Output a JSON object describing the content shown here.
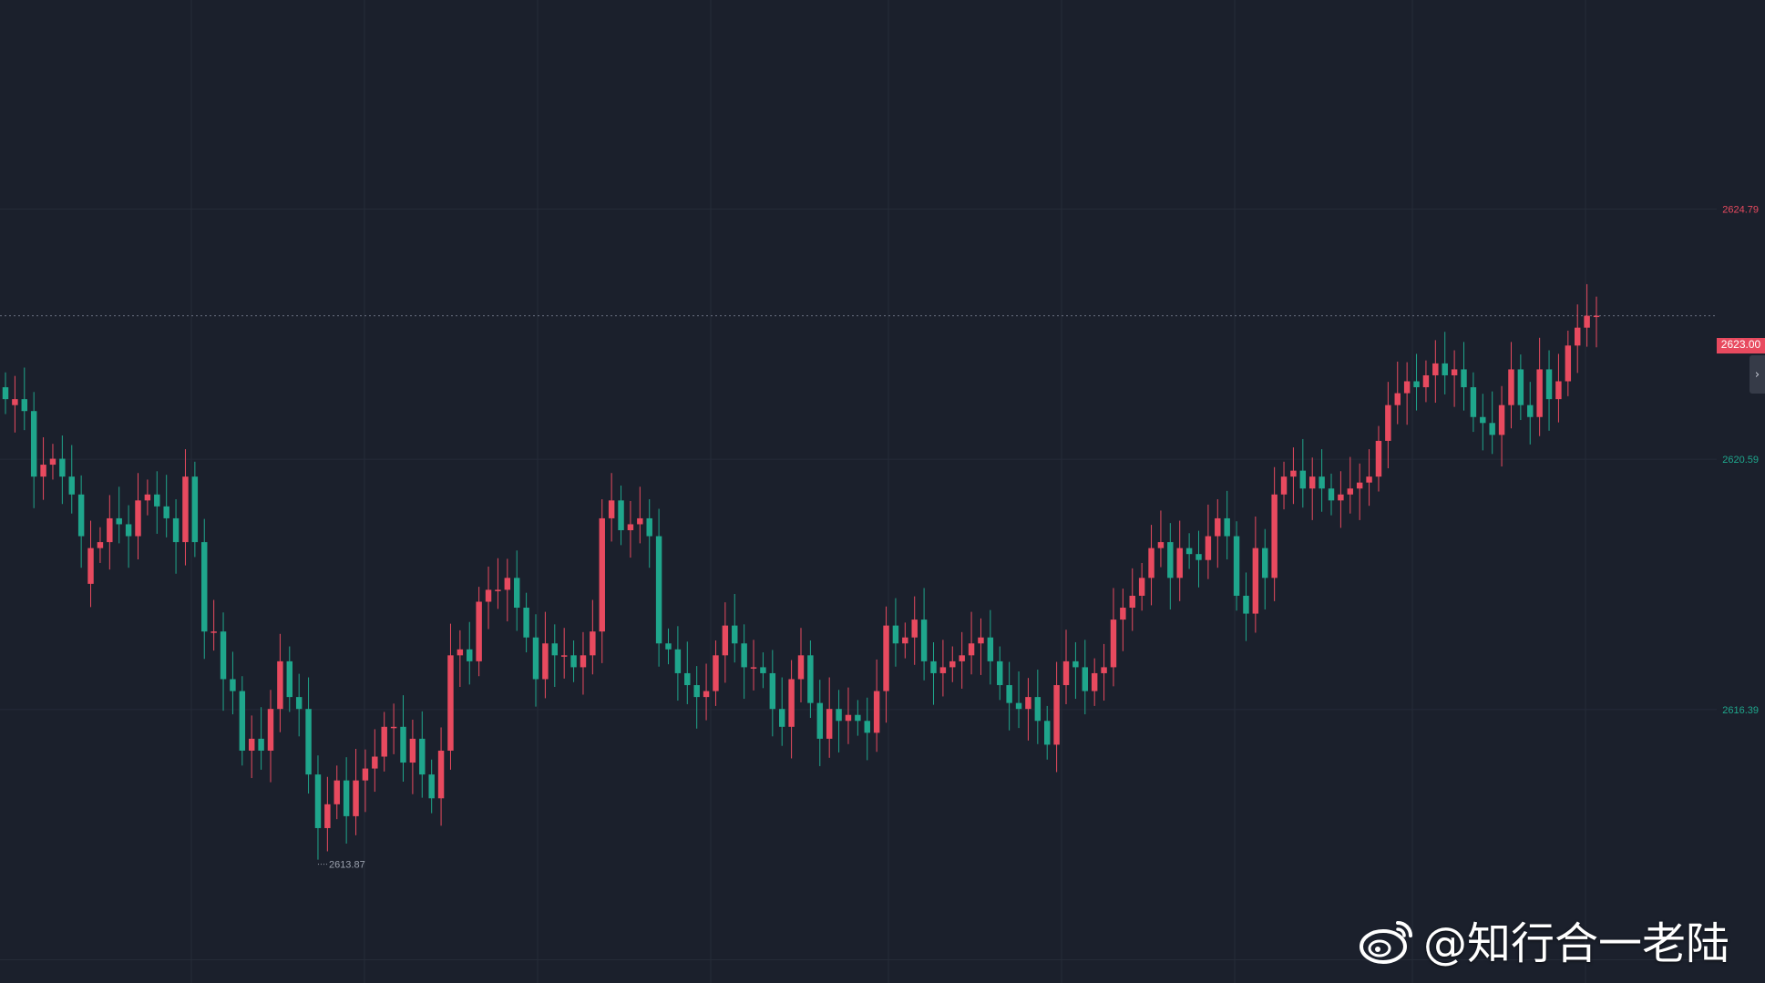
{
  "chart_data": {
    "type": "candlestick",
    "title": "",
    "xlabel": "",
    "ylabel": "",
    "ylim": [
      2611.8,
      2628.3
    ],
    "y_ticks": [
      "2624.79",
      "2620.59",
      "2616.39"
    ],
    "current_price": "2623.00",
    "low_annotation": {
      "label": "2613.87",
      "bar_index": 33
    },
    "grid": true,
    "colors": {
      "up": "#e84a5f",
      "down": "#1fa68c",
      "background": "#1b202c",
      "grid": "#252b38",
      "last_price_line": "#6b7080"
    },
    "closes": [
      2621.6,
      2621.6,
      2621.4,
      2620.3,
      2620.5,
      2620.6,
      2620.3,
      2620.0,
      2619.3,
      2619.1,
      2619.2,
      2619.6,
      2619.5,
      2619.3,
      2619.9,
      2620.0,
      2619.8,
      2619.6,
      2619.2,
      2620.3,
      2619.2,
      2617.7,
      2617.7,
      2616.9,
      2616.7,
      2615.7,
      2615.9,
      2615.7,
      2616.4,
      2617.2,
      2616.6,
      2616.4,
      2615.3,
      2614.4,
      2614.8,
      2615.2,
      2614.6,
      2615.2,
      2615.4,
      2615.6,
      2616.1,
      2616.1,
      2615.5,
      2615.9,
      2615.3,
      2614.9,
      2615.7,
      2617.3,
      2617.4,
      2617.2,
      2618.2,
      2618.4,
      2618.4,
      2618.6,
      2618.1,
      2617.6,
      2616.9,
      2617.5,
      2617.3,
      2617.3,
      2617.1,
      2617.3,
      2617.7,
      2619.6,
      2619.9,
      2619.4,
      2619.5,
      2619.6,
      2619.3,
      2617.5,
      2617.4,
      2617.0,
      2616.8,
      2616.6,
      2616.7,
      2617.3,
      2617.8,
      2617.5,
      2617.1,
      2617.1,
      2617.0,
      2616.4,
      2616.1,
      2616.9,
      2617.3,
      2616.5,
      2615.9,
      2616.4,
      2616.2,
      2616.3,
      2616.2,
      2616.0,
      2616.7,
      2617.8,
      2617.5,
      2617.6,
      2617.9,
      2617.2,
      2617.0,
      2617.1,
      2617.2,
      2617.3,
      2617.5,
      2617.6,
      2617.2,
      2616.8,
      2616.5,
      2616.4,
      2616.6,
      2616.2,
      2615.8,
      2616.8,
      2617.2,
      2617.1,
      2616.7,
      2617.0,
      2617.1,
      2617.9,
      2618.1,
      2618.3,
      2618.6,
      2619.1,
      2619.2,
      2618.6,
      2619.1,
      2619.0,
      2618.9,
      2619.3,
      2619.6,
      2619.3,
      2618.3,
      2618.0,
      2619.1,
      2618.6,
      2620.0,
      2620.3,
      2620.4,
      2620.1,
      2620.3,
      2620.1,
      2619.9,
      2620.0,
      2620.1,
      2620.2,
      2620.3,
      2620.9,
      2621.5,
      2621.7,
      2621.9,
      2621.8,
      2622.0,
      2622.2,
      2622.0,
      2622.1,
      2621.8,
      2621.3,
      2621.2,
      2621.0,
      2621.5,
      2622.1,
      2621.5,
      2621.3,
      2622.1,
      2621.6,
      2621.9,
      2622.5,
      2622.8,
      2623.0,
      2623.0
    ],
    "opens": [
      2621.8,
      2621.5,
      2621.6,
      2621.4,
      2620.3,
      2620.5,
      2620.6,
      2620.3,
      2620.0,
      2618.5,
      2619.1,
      2619.2,
      2619.6,
      2619.5,
      2619.3,
      2619.9,
      2620.0,
      2619.8,
      2619.6,
      2619.2,
      2620.3,
      2619.2,
      2617.7,
      2617.7,
      2616.9,
      2616.7,
      2615.7,
      2615.9,
      2615.7,
      2616.4,
      2617.2,
      2616.6,
      2616.4,
      2615.3,
      2614.4,
      2614.8,
      2615.2,
      2614.6,
      2615.2,
      2615.4,
      2615.6,
      2616.1,
      2616.1,
      2615.5,
      2615.9,
      2615.3,
      2614.9,
      2615.7,
      2617.3,
      2617.4,
      2617.2,
      2618.2,
      2618.4,
      2618.4,
      2618.6,
      2618.1,
      2617.6,
      2616.9,
      2617.5,
      2617.3,
      2617.3,
      2617.1,
      2617.3,
      2617.7,
      2619.6,
      2619.9,
      2619.4,
      2619.5,
      2619.6,
      2619.3,
      2617.5,
      2617.4,
      2617.0,
      2616.8,
      2616.6,
      2616.7,
      2617.3,
      2617.8,
      2617.5,
      2617.1,
      2617.1,
      2617.0,
      2616.4,
      2616.1,
      2616.9,
      2617.3,
      2616.5,
      2615.9,
      2616.4,
      2616.2,
      2616.3,
      2616.2,
      2616.0,
      2616.7,
      2617.8,
      2617.5,
      2617.6,
      2617.9,
      2617.2,
      2617.0,
      2617.1,
      2617.2,
      2617.3,
      2617.5,
      2617.6,
      2617.2,
      2616.8,
      2616.5,
      2616.4,
      2616.6,
      2616.2,
      2615.8,
      2616.8,
      2617.2,
      2617.1,
      2616.7,
      2617.0,
      2617.1,
      2617.9,
      2618.1,
      2618.3,
      2618.6,
      2619.1,
      2619.2,
      2618.6,
      2619.1,
      2619.0,
      2618.9,
      2619.3,
      2619.6,
      2619.3,
      2618.3,
      2618.0,
      2619.1,
      2618.6,
      2620.0,
      2620.3,
      2620.4,
      2620.1,
      2620.3,
      2620.1,
      2619.9,
      2620.0,
      2620.1,
      2620.2,
      2620.3,
      2620.9,
      2621.5,
      2621.7,
      2621.9,
      2621.8,
      2622.0,
      2622.2,
      2622.0,
      2622.1,
      2621.8,
      2621.3,
      2621.2,
      2621.0,
      2621.5,
      2622.1,
      2621.5,
      2621.3,
      2622.1,
      2621.6,
      2621.9,
      2622.5,
      2622.8,
      2623.0
    ]
  },
  "watermark": {
    "text": "@知行合一老陆",
    "icon": "weibo-icon"
  },
  "controls": {
    "collapse_glyph": "›"
  }
}
